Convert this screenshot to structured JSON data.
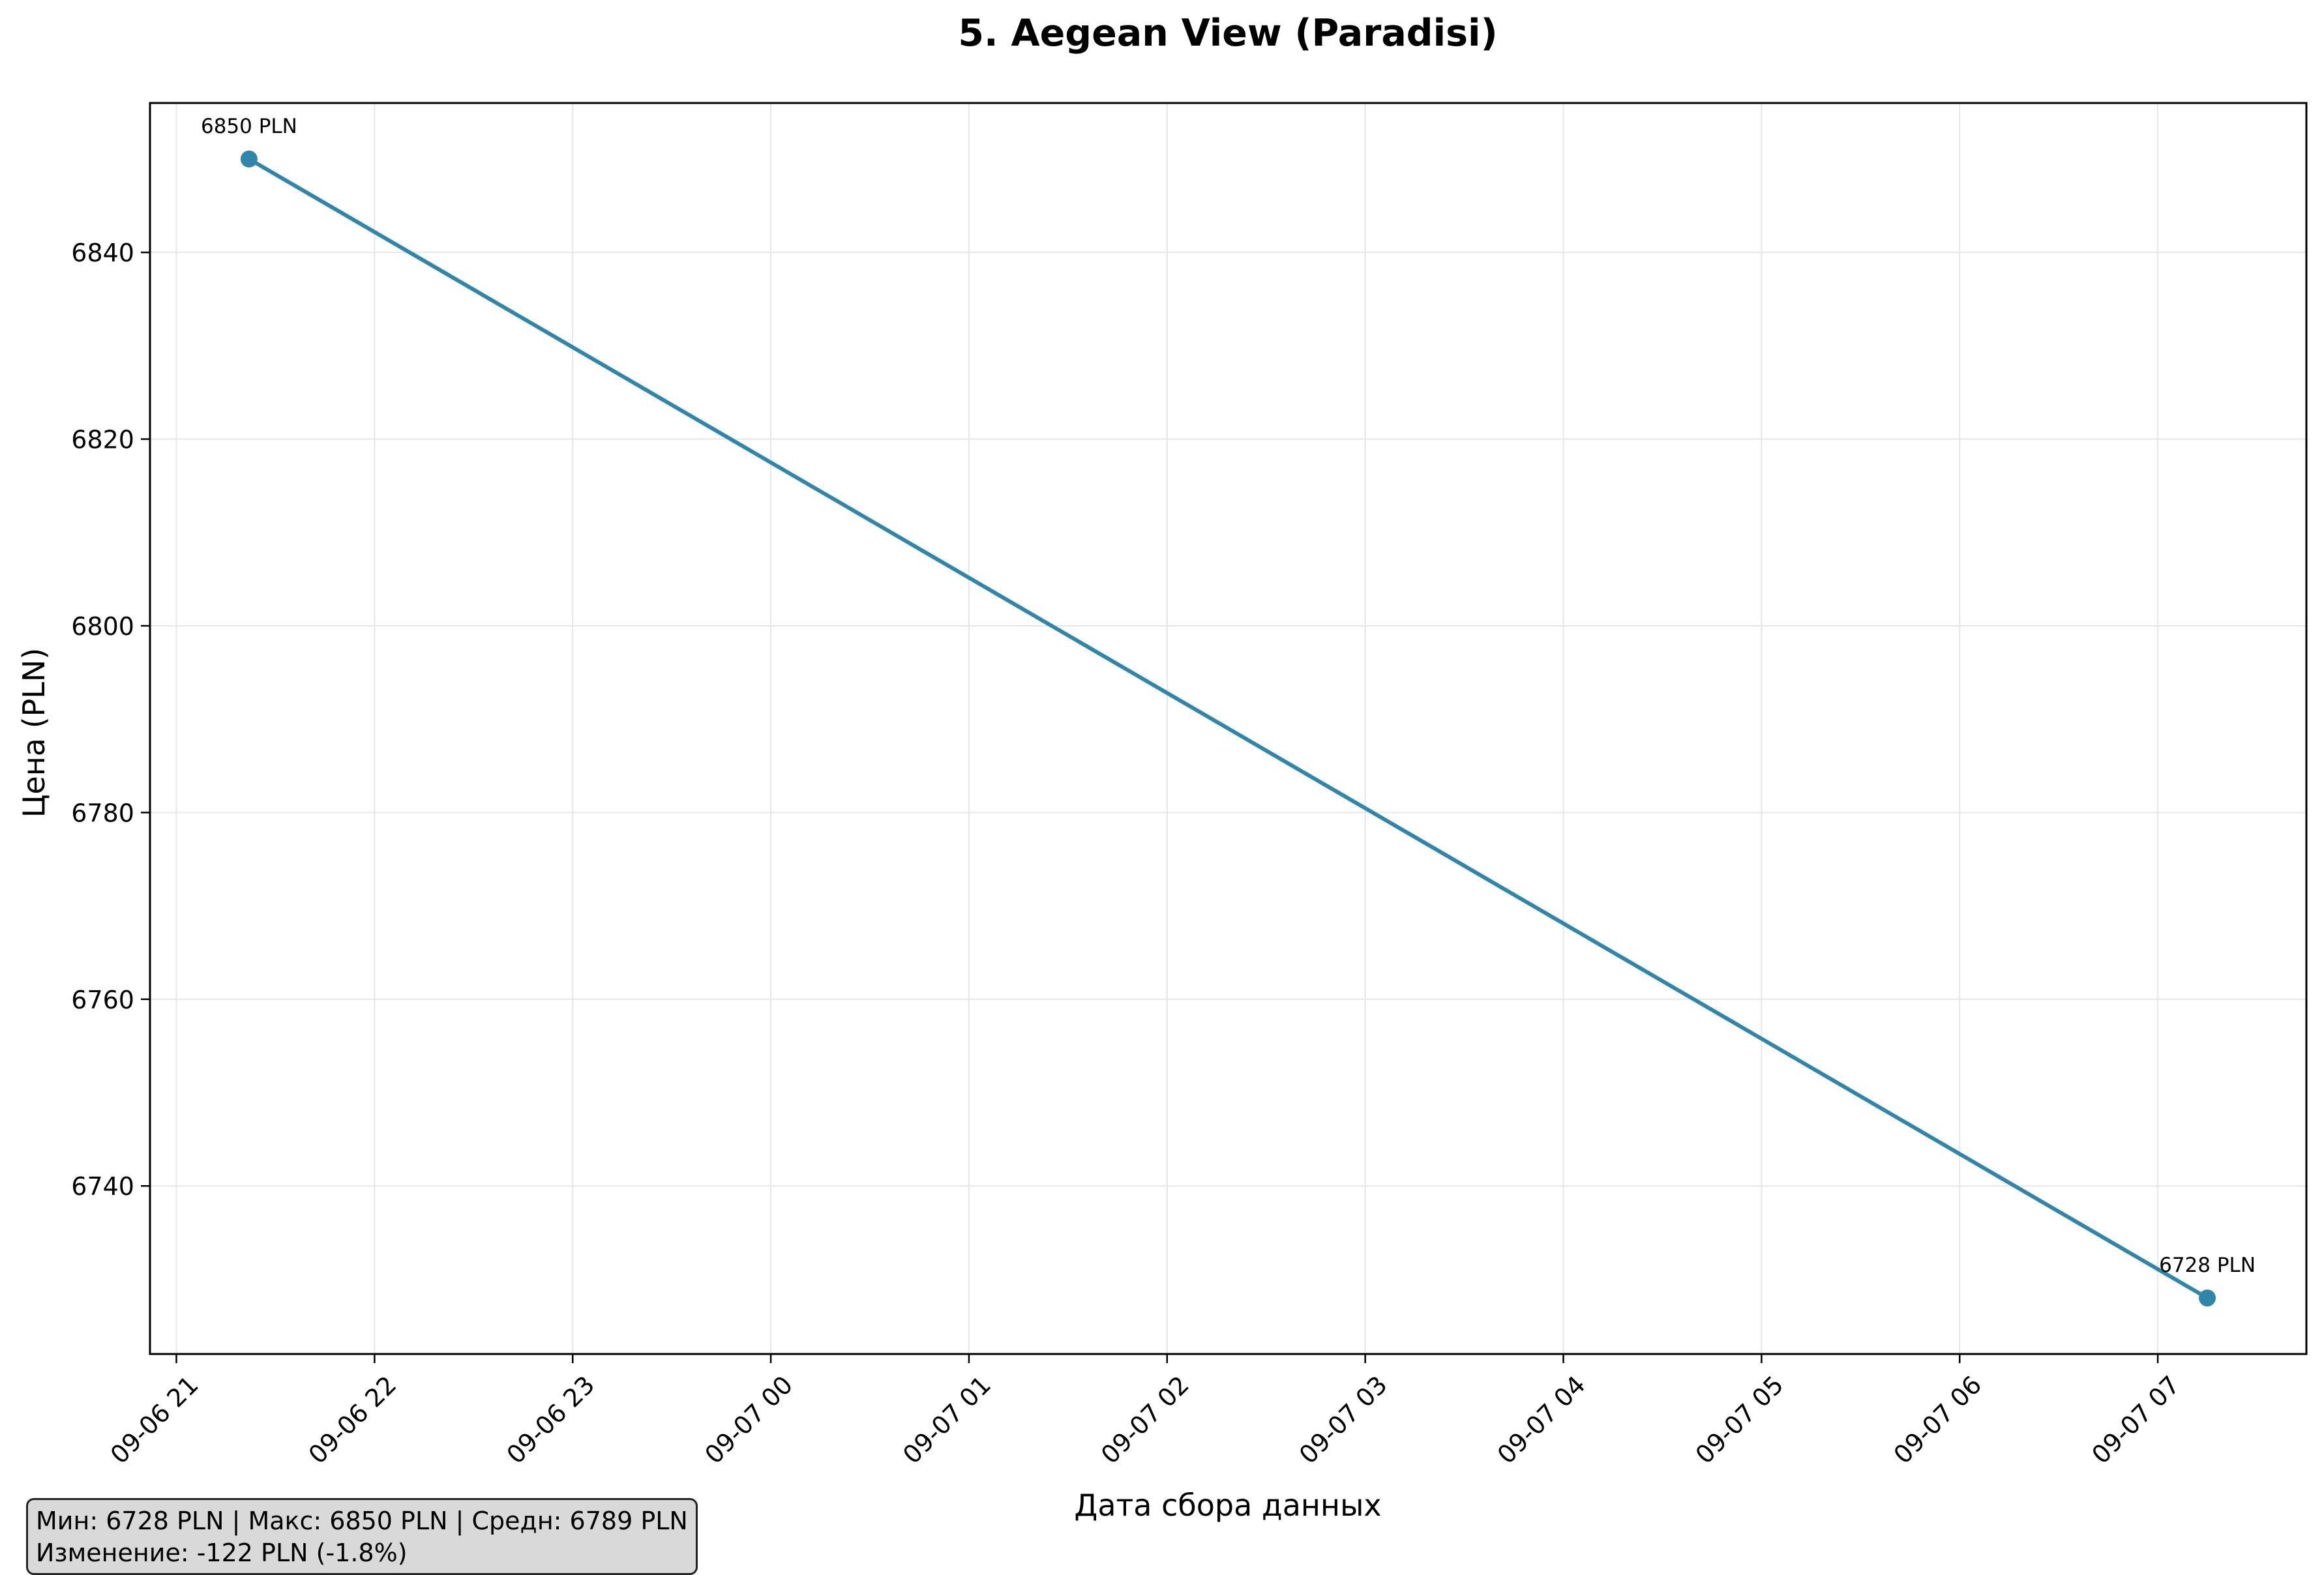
{
  "chart_data": {
    "type": "line",
    "title": "5. Aegean View (Paradisi)",
    "xlabel": "Дата сбора данных",
    "ylabel": "Цена (PLN)",
    "x": [
      "2024-09-06 21:22",
      "2024-09-07 07:15"
    ],
    "x_tick_labels": [
      "09-06 21",
      "09-06 22",
      "09-06 23",
      "09-07 00",
      "09-07 01",
      "09-07 02",
      "09-07 03",
      "09-07 04",
      "09-07 05",
      "09-07 06",
      "09-07 07"
    ],
    "x_tick_times": [
      "2024-09-06 21:00",
      "2024-09-06 22:00",
      "2024-09-06 23:00",
      "2024-09-07 00:00",
      "2024-09-07 01:00",
      "2024-09-07 02:00",
      "2024-09-07 03:00",
      "2024-09-07 04:00",
      "2024-09-07 05:00",
      "2024-09-07 06:00",
      "2024-09-07 07:00"
    ],
    "xlim": [
      "2024-09-06 20:52",
      "2024-09-07 07:45"
    ],
    "series": [
      {
        "values": [
          6850,
          6728
        ],
        "color": "#2e86ab"
      }
    ],
    "data_labels": [
      "6850 PLN",
      "6728 PLN"
    ],
    "y_ticks": [
      6740,
      6760,
      6780,
      6800,
      6820,
      6840
    ],
    "ylim": [
      6722,
      6856
    ],
    "grid": true
  },
  "stats": {
    "line1": "Мин: 6728 PLN | Макс: 6850 PLN | Средн: 6789 PLN",
    "line2": "Изменение: -122 PLN (-1.8%)"
  }
}
